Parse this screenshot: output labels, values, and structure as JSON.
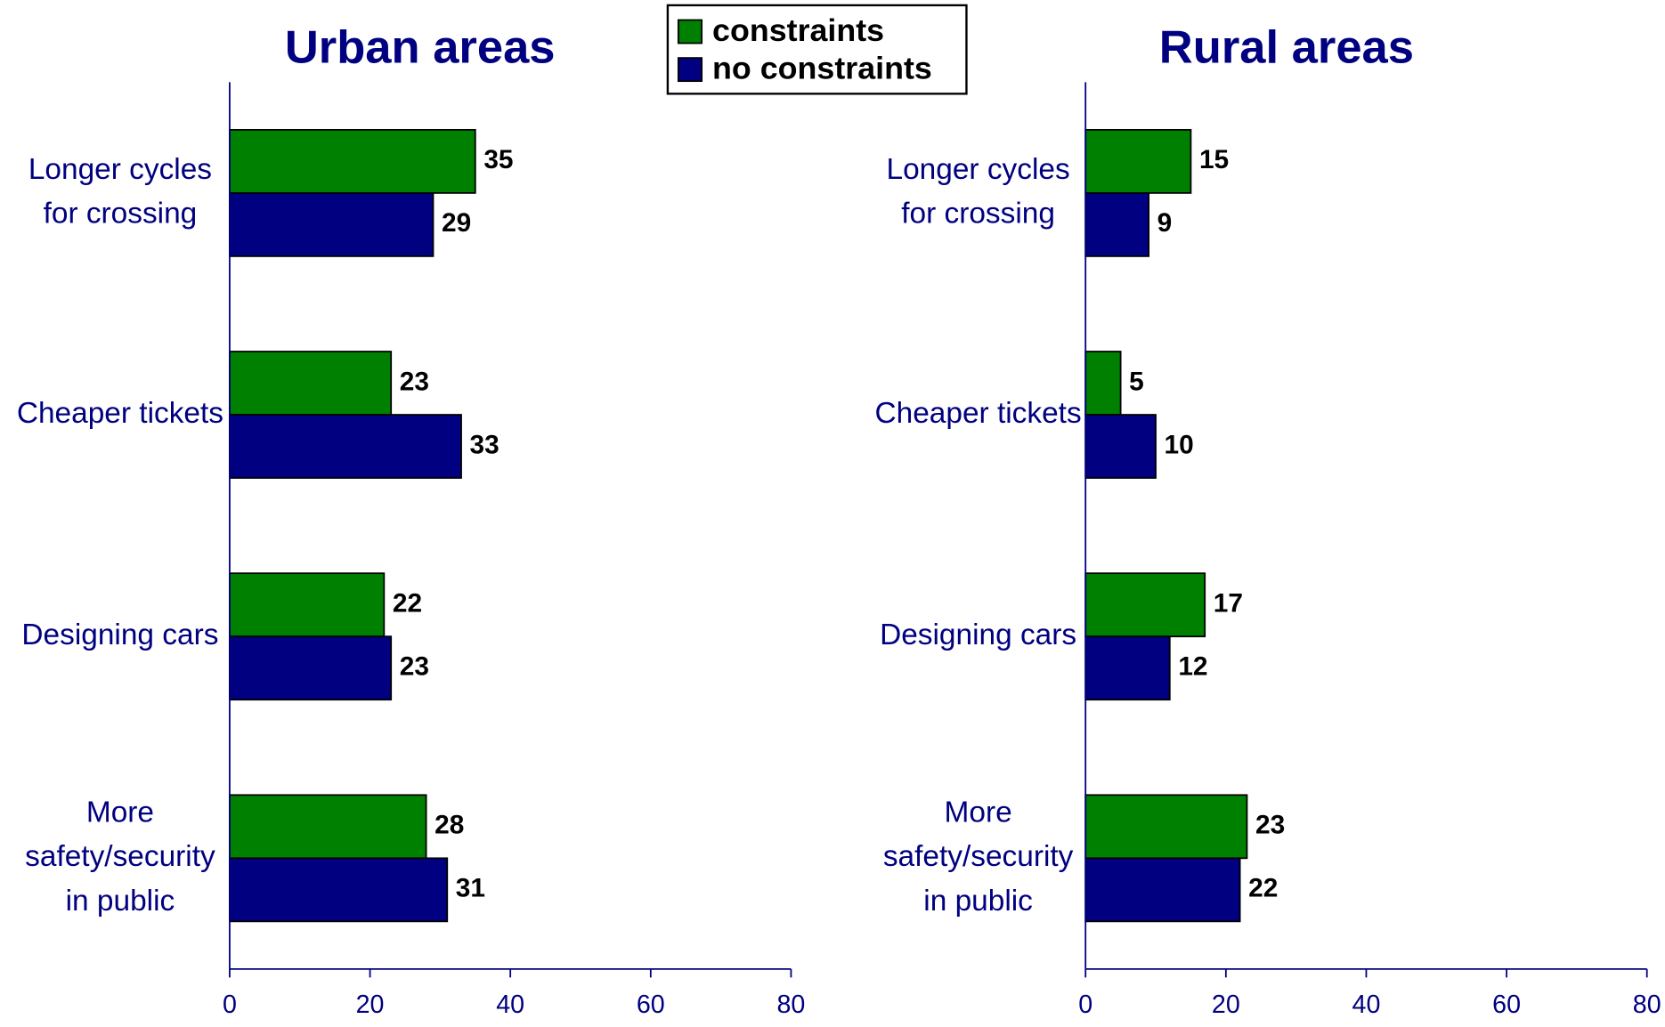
{
  "legend": {
    "entries": [
      {
        "name": "constraints",
        "color": "#008000"
      },
      {
        "name": "no constraints",
        "color": "#000080"
      }
    ]
  },
  "chart_data": [
    {
      "type": "bar",
      "orientation": "horizontal",
      "title": "Urban areas",
      "categories": [
        [
          "Longer cycles",
          "for crossing"
        ],
        [
          "Cheaper tickets"
        ],
        [
          "Designing cars"
        ],
        [
          "More",
          "safety/security",
          "in public"
        ]
      ],
      "series": [
        {
          "color": "#008000",
          "values": [
            35,
            23,
            22,
            28
          ]
        },
        {
          "color": "#000080",
          "values": [
            29,
            33,
            23,
            31
          ]
        }
      ],
      "xlim": [
        0,
        80
      ],
      "xticks": [
        0,
        20,
        40,
        60,
        80
      ]
    },
    {
      "type": "bar",
      "orientation": "horizontal",
      "title": "Rural areas",
      "categories": [
        [
          "Longer cycles",
          "for crossing"
        ],
        [
          "Cheaper tickets"
        ],
        [
          "Designing cars"
        ],
        [
          "More",
          "safety/security",
          "in public"
        ]
      ],
      "series": [
        {
          "color": "#008000",
          "values": [
            15,
            5,
            17,
            23
          ]
        },
        {
          "color": "#000080",
          "values": [
            9,
            10,
            12,
            22
          ]
        }
      ],
      "xlim": [
        0,
        80
      ],
      "xticks": [
        0,
        20,
        40,
        60,
        80
      ]
    }
  ]
}
